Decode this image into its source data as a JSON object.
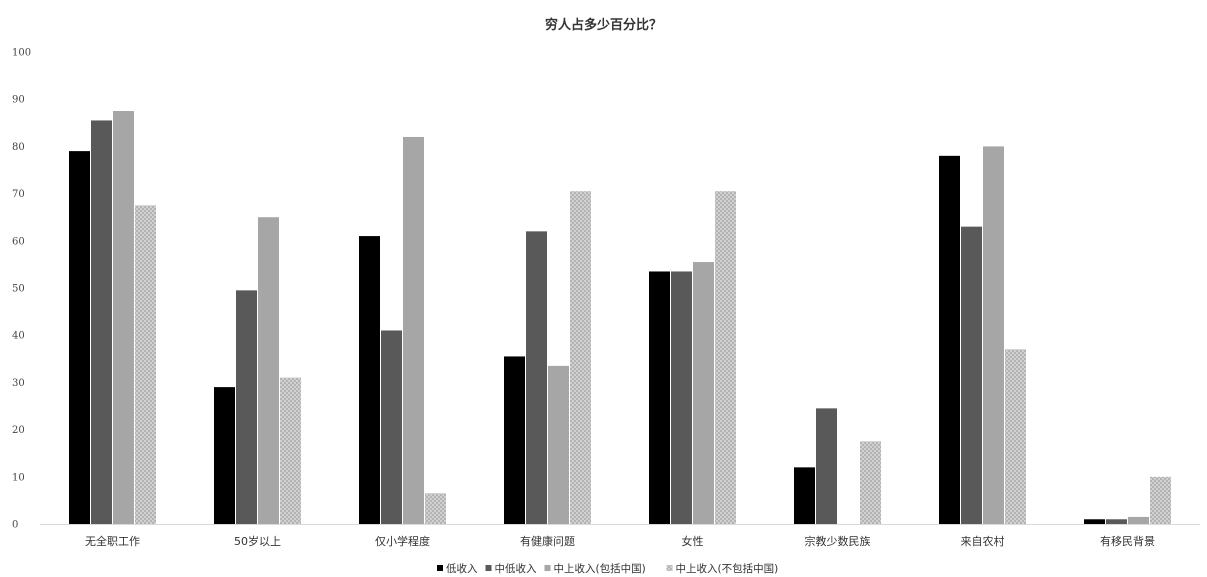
{
  "chart_data": {
    "type": "bar",
    "title": "穷人占多少百分比？",
    "xlabel": "",
    "ylabel": "",
    "ylim": [
      0,
      100
    ],
    "yticks": [
      0,
      10,
      20,
      30,
      40,
      50,
      60,
      70,
      80,
      90,
      100
    ],
    "grid": false,
    "legend_position": "bottom",
    "categories": [
      "无全职工作",
      "50岁以上",
      "仅小学程度",
      "有健康问题",
      "女性",
      "宗教少数民族",
      "来自农村",
      "有移民背景"
    ],
    "series": [
      {
        "name": "低收入",
        "color": "#000000",
        "pattern": "solid",
        "values": [
          79,
          29,
          61,
          35.5,
          53.5,
          12,
          78,
          1
        ]
      },
      {
        "name": "中低收入",
        "color": "#595959",
        "pattern": "solid",
        "values": [
          85.5,
          49.5,
          41,
          62,
          53.5,
          24.5,
          63,
          1
        ]
      },
      {
        "name": "中上收入(包括中国)",
        "color": "#a6a6a6",
        "pattern": "solid",
        "values": [
          87.5,
          65,
          82,
          33.5,
          55.5,
          null,
          80,
          1.5
        ]
      },
      {
        "name": "中上收入(不包括中国)",
        "color": "#bfbfbf",
        "pattern": "dotted",
        "values": [
          67.5,
          31,
          6.5,
          70.5,
          70.5,
          17.5,
          37,
          10
        ]
      }
    ]
  }
}
